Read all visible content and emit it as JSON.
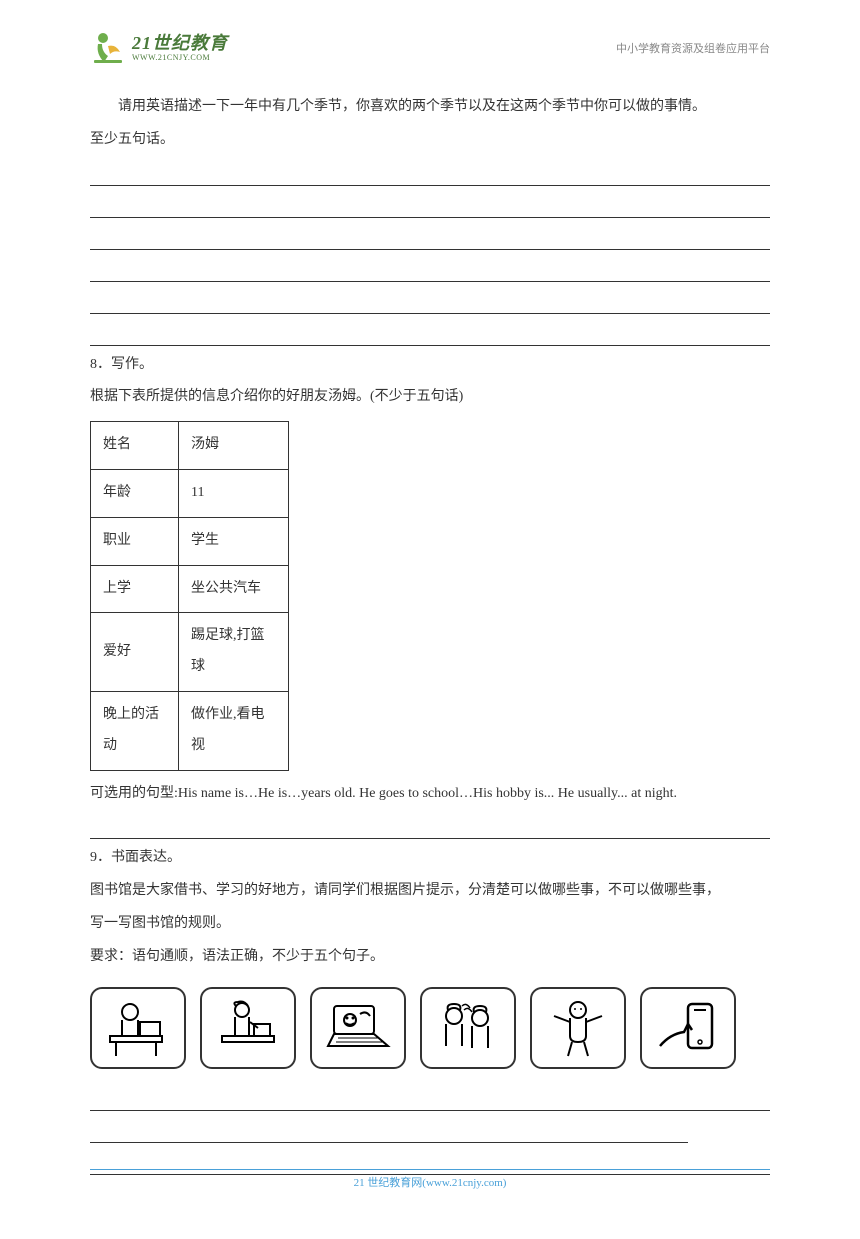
{
  "header": {
    "logo_main": "21世纪教育",
    "logo_sub": "WWW.21CNJY.COM",
    "right_text": "中小学教育资源及组卷应用平台"
  },
  "q7": {
    "line1": "请用英语描述一下一年中有几个季节，你喜欢的两个季节以及在这两个季节中你可以做的事情。",
    "line2": "至少五句话。"
  },
  "q8": {
    "num": "8．写作。",
    "intro": "根据下表所提供的信息介绍你的好朋友汤姆。(不少于五句话)",
    "table": {
      "rows": [
        [
          "姓名",
          "汤姆"
        ],
        [
          "年龄",
          "11"
        ],
        [
          "职业",
          "学生"
        ],
        [
          "上学",
          "坐公共汽车"
        ],
        [
          "爱好",
          "踢足球,打篮球"
        ],
        [
          "晚上的活动",
          "做作业,看电视"
        ]
      ]
    },
    "hint": "可选用的句型:His name is…He is…years old. He goes to school…His hobby is... He usually... at night."
  },
  "q9": {
    "num": "9．书面表达。",
    "line1": "图书馆是大家借书、学习的好地方，请同学们根据图片提示，分清楚可以做哪些事，不可以做哪些事，",
    "line2": "写一写图书馆的规则。",
    "req": "要求：语句通顺，语法正确，不少于五个句子。"
  },
  "footer": "21 世纪教育网(www.21cnjy.com)"
}
